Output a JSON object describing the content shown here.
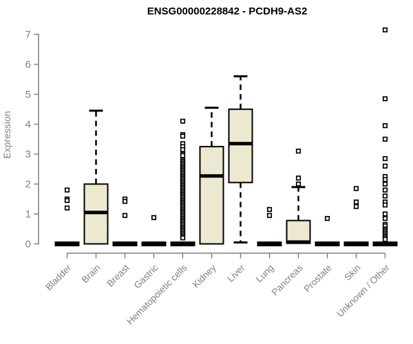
{
  "title": "ENSG00000228842 - PCDH9-AS2",
  "y_axis": {
    "label": "Expression",
    "ticks": [
      0,
      1,
      2,
      3,
      4,
      5,
      6,
      7
    ]
  },
  "colors": {
    "box_fill": "#EDE8D0",
    "box_border": "#000000",
    "median": "#000000",
    "axis": "#7f7f7f",
    "tick_text": "#808080",
    "title_text": "#000000",
    "background": "#ffffff"
  },
  "chart_data": {
    "type": "boxplot",
    "title": "ENSG00000228842 - PCDH9-AS2",
    "xlabel": "",
    "ylabel": "Expression",
    "ylim": [
      0,
      7.2
    ],
    "grid": false,
    "categories": [
      "Bladder",
      "Brain",
      "Breast",
      "Gastric",
      "Hematopoietic cells",
      "Kidney",
      "Liver",
      "Lung",
      "Pancreas",
      "Prostate",
      "Skin",
      "Unknown / Other"
    ],
    "series": [
      {
        "name": "Bladder",
        "q1": 0,
        "median": 0,
        "q3": 0,
        "whisker_low": 0,
        "whisker_high": 0,
        "outliers": [
          1.8,
          1.5,
          1.45,
          1.2
        ]
      },
      {
        "name": "Brain",
        "q1": 0,
        "median": 1.05,
        "q3": 2.0,
        "whisker_low": 0,
        "whisker_high": 4.45,
        "outliers": []
      },
      {
        "name": "Breast",
        "q1": 0,
        "median": 0,
        "q3": 0,
        "whisker_low": 0,
        "whisker_high": 0,
        "outliers": [
          1.5,
          1.42,
          0.95
        ]
      },
      {
        "name": "Gastric",
        "q1": 0,
        "median": 0,
        "q3": 0,
        "whisker_low": 0,
        "whisker_high": 0,
        "outliers": [
          0.88
        ]
      },
      {
        "name": "Hematopoietic cells",
        "q1": 0,
        "median": 0,
        "q3": 0,
        "whisker_low": 0,
        "whisker_high": 0,
        "outliers": [
          4.1,
          3.65,
          3.6,
          3.35,
          3.25,
          3.15,
          3.0,
          2.95,
          2.8,
          2.75,
          2.7,
          2.65,
          2.6,
          2.55,
          2.5,
          2.45,
          2.4,
          2.35,
          2.3,
          2.25,
          2.2,
          2.15,
          2.1,
          2.05,
          2.0,
          1.95,
          1.9,
          1.85,
          1.8,
          1.75,
          1.7,
          1.65,
          1.6,
          1.55,
          1.5,
          1.45,
          1.4,
          1.35,
          1.3,
          1.25,
          1.2,
          1.15,
          1.1,
          1.05,
          1.0,
          0.95,
          0.9,
          0.85,
          0.8,
          0.75,
          0.7,
          0.65,
          0.6,
          0.55,
          0.5,
          0.45,
          0.4,
          0.35,
          0.3,
          0.25,
          0.2
        ]
      },
      {
        "name": "Kidney",
        "q1": 0,
        "median": 2.27,
        "q3": 3.25,
        "whisker_low": 0,
        "whisker_high": 4.55,
        "outliers": []
      },
      {
        "name": "Liver",
        "q1": 2.05,
        "median": 3.35,
        "q3": 4.5,
        "whisker_low": 0.05,
        "whisker_high": 5.6,
        "outliers": []
      },
      {
        "name": "Lung",
        "q1": 0,
        "median": 0,
        "q3": 0,
        "whisker_low": 0,
        "whisker_high": 0,
        "outliers": [
          1.15,
          0.95
        ]
      },
      {
        "name": "Pancreas",
        "q1": 0.02,
        "median": 0.06,
        "q3": 0.78,
        "whisker_low": 0.02,
        "whisker_high": 1.9,
        "outliers": [
          3.1,
          2.2,
          2.0
        ]
      },
      {
        "name": "Prostate",
        "q1": 0,
        "median": 0,
        "q3": 0,
        "whisker_low": 0,
        "whisker_high": 0,
        "outliers": [
          0.85
        ]
      },
      {
        "name": "Skin",
        "q1": 0,
        "median": 0,
        "q3": 0,
        "whisker_low": 0,
        "whisker_high": 0,
        "outliers": [
          1.85,
          1.4,
          1.25
        ]
      },
      {
        "name": "Unknown / Other",
        "q1": 0,
        "median": 0,
        "q3": 0,
        "whisker_low": 0,
        "whisker_high": 0,
        "outliers": [
          7.15,
          4.85,
          3.95,
          3.5,
          2.85,
          2.6,
          2.25,
          2.15,
          2.0,
          1.8,
          1.6,
          1.4,
          1.3,
          1.0,
          0.85,
          0.65,
          0.6,
          0.5,
          0.45,
          0.4,
          0.35,
          0.3,
          0.25,
          0.2,
          0.15
        ]
      }
    ]
  }
}
